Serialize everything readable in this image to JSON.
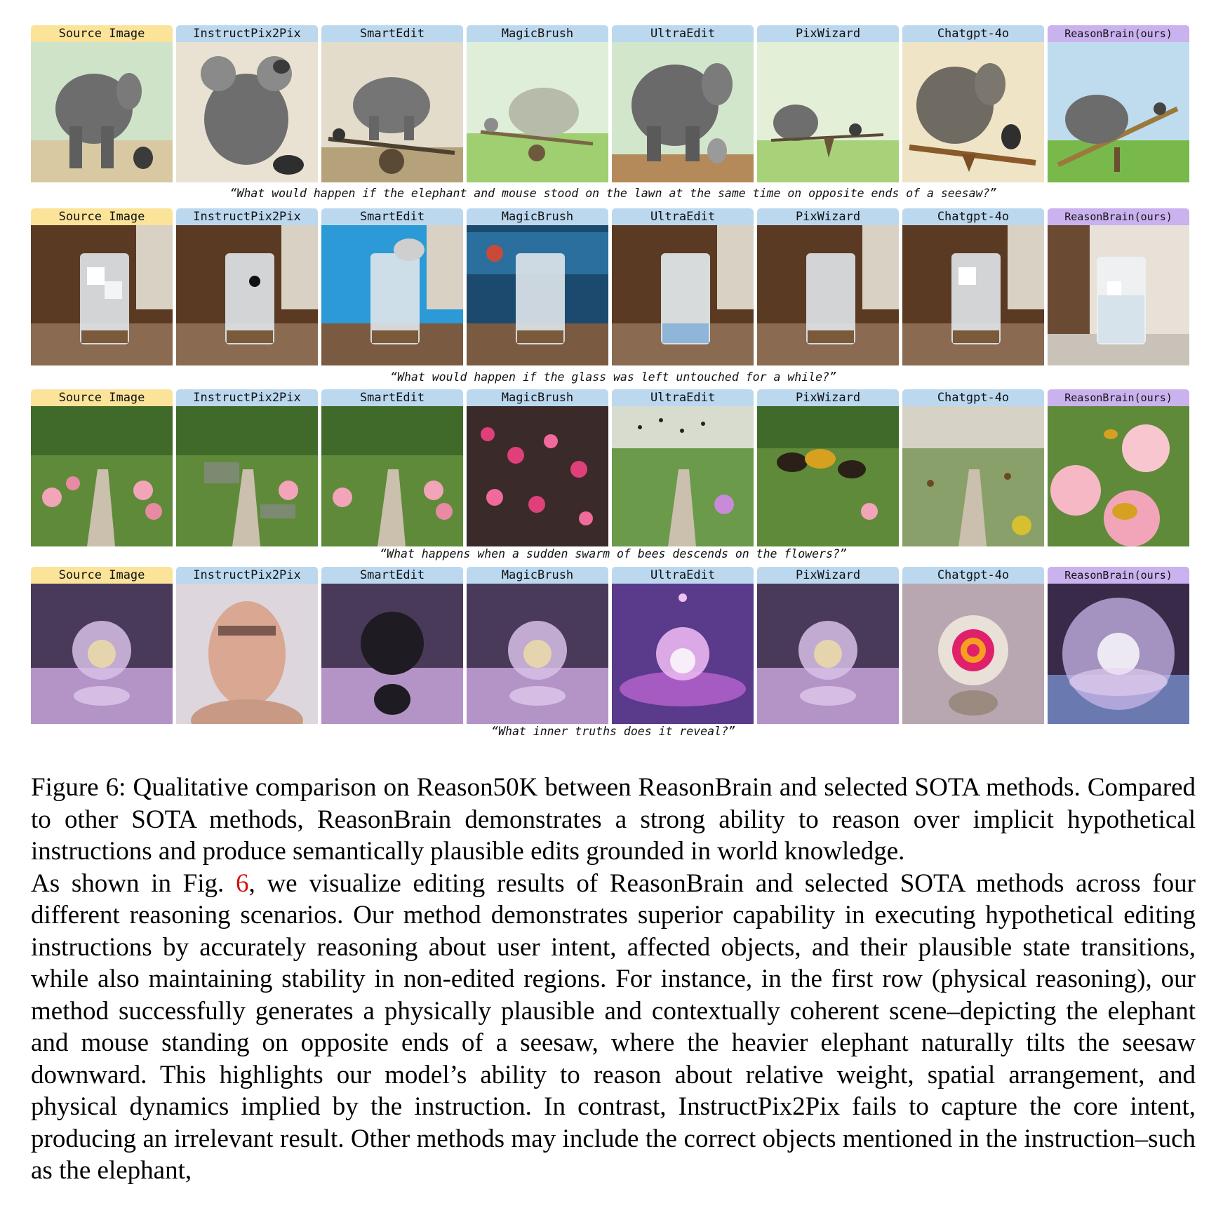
{
  "rows": [
    {
      "labels": [
        "Source Image",
        "InstructPix2Pix",
        "SmartEdit",
        "MagicBrush",
        "UltraEdit",
        "PixWizard",
        "Chatgpt-4o",
        "ReasonBrain(ours)"
      ],
      "prompt": "“What would happen if the elephant and mouse stood on the lawn at the same time on opposite ends of a seesaw?”"
    },
    {
      "labels": [
        "Source Image",
        "InstructPix2Pix",
        "SmartEdit",
        "MagicBrush",
        "UltraEdit",
        "PixWizard",
        "Chatgpt-4o",
        "ReasonBrain(ours)"
      ],
      "prompt": "“What would happen if the glass was left untouched for a while?”"
    },
    {
      "labels": [
        "Source Image",
        "InstructPix2Pix",
        "SmartEdit",
        "MagicBrush",
        "UltraEdit",
        "PixWizard",
        "Chatgpt-4o",
        "ReasonBrain(ours)"
      ],
      "prompt": "“What happens when a sudden swarm of bees descends on the flowers?”"
    },
    {
      "labels": [
        "Source Image",
        "InstructPix2Pix",
        "SmartEdit",
        "MagicBrush",
        "UltraEdit",
        "PixWizard",
        "Chatgpt-4o",
        "ReasonBrain(ours)"
      ],
      "prompt": "“What inner truths does it reveal?”"
    }
  ],
  "caption": "Figure 6: Qualitative comparison on Reason50K between ReasonBrain and selected SOTA methods. Compared to other SOTA methods, ReasonBrain demonstrates a strong ability to reason over implicit hypothetical instructions and produce semantically plausible edits grounded in world knowledge.",
  "paragraph": {
    "before_ref": "As shown in Fig. ",
    "ref": "6",
    "after_ref": ", we visualize editing results of ReasonBrain and selected SOTA methods across four different reasoning scenarios. Our method demonstrates superior capability in executing hypothetical editing instructions by accurately reasoning about user intent, affected objects, and their plausible state transitions, while also maintaining stability in non-edited regions. For instance, in the first row (physical reasoning), our method successfully generates a physically plausible and contextually coherent scene–depicting the elephant and mouse standing on opposite ends of a seesaw, where the heavier elephant naturally tilts the seesaw downward. This highlights our model’s ability to reason about relative weight, spatial arrangement, and physical dynamics implied by the instruction. In contrast, InstructPix2Pix fails to capture the core intent, producing an irrelevant result. Other methods may include the correct objects mentioned in the instruction–such as the elephant,"
  }
}
